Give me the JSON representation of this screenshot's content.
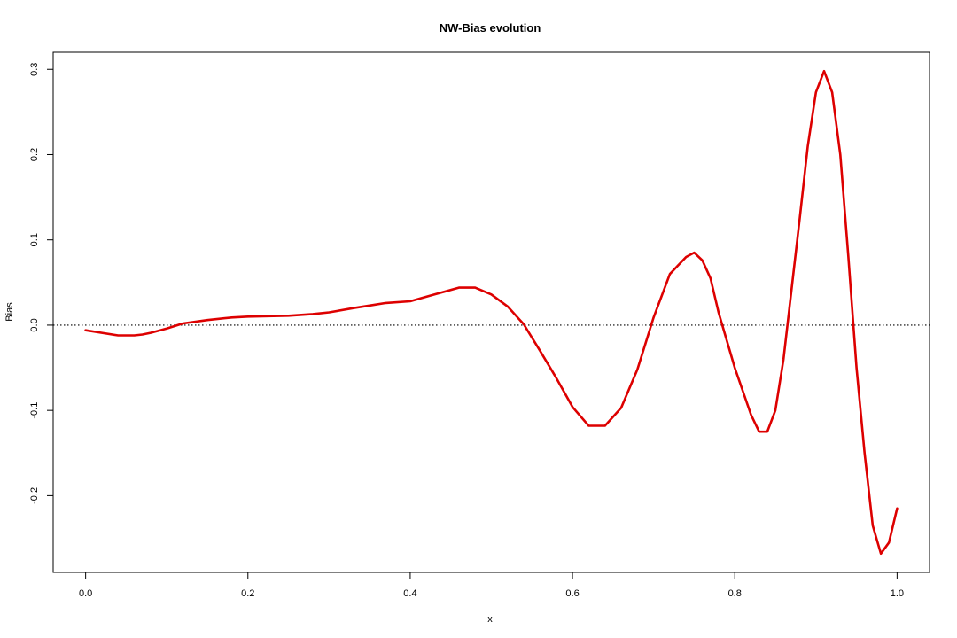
{
  "chart_data": {
    "type": "line",
    "title": "NW-Bias evolution",
    "xlabel": "x",
    "ylabel": "Bias",
    "xlim": [
      -0.04,
      1.04
    ],
    "ylim": [
      -0.29,
      0.32
    ],
    "x_ticks": [
      0.0,
      0.2,
      0.4,
      0.6,
      0.8,
      1.0
    ],
    "x_tick_labels": [
      "0.0",
      "0.2",
      "0.4",
      "0.6",
      "0.8",
      "1.0"
    ],
    "y_ticks": [
      -0.2,
      -0.1,
      0.0,
      0.1,
      0.2,
      0.3
    ],
    "y_tick_labels": [
      "-0.2",
      "-0.1",
      "0.0",
      "0.1",
      "0.2",
      "0.3"
    ],
    "reference_line": {
      "y": 0.0,
      "style": "dotted",
      "color": "#000000"
    },
    "grid": false,
    "legend": "none",
    "series": [
      {
        "color": "#dd0000",
        "x": [
          0.0,
          0.02,
          0.04,
          0.06,
          0.07,
          0.08,
          0.1,
          0.12,
          0.15,
          0.18,
          0.2,
          0.25,
          0.28,
          0.3,
          0.33,
          0.35,
          0.37,
          0.4,
          0.43,
          0.46,
          0.48,
          0.5,
          0.52,
          0.54,
          0.56,
          0.58,
          0.6,
          0.62,
          0.64,
          0.66,
          0.68,
          0.7,
          0.72,
          0.74,
          0.75,
          0.76,
          0.77,
          0.78,
          0.8,
          0.82,
          0.83,
          0.84,
          0.85,
          0.86,
          0.88,
          0.89,
          0.9,
          0.91,
          0.92,
          0.93,
          0.94,
          0.95,
          0.96,
          0.97,
          0.98,
          0.99,
          1.0
        ],
        "y": [
          -0.006,
          -0.009,
          -0.012,
          -0.012,
          -0.011,
          -0.009,
          -0.004,
          0.002,
          0.006,
          0.009,
          0.01,
          0.011,
          0.013,
          0.015,
          0.02,
          0.023,
          0.026,
          0.028,
          0.036,
          0.044,
          0.044,
          0.036,
          0.022,
          0.001,
          -0.03,
          -0.062,
          -0.096,
          -0.118,
          -0.118,
          -0.097,
          -0.052,
          0.009,
          0.06,
          0.08,
          0.085,
          0.076,
          0.055,
          0.015,
          -0.05,
          -0.105,
          -0.125,
          -0.125,
          -0.1,
          -0.04,
          0.125,
          0.21,
          0.273,
          0.298,
          0.273,
          0.2,
          0.08,
          -0.05,
          -0.15,
          -0.235,
          -0.268,
          -0.255,
          -0.215
        ]
      }
    ]
  }
}
